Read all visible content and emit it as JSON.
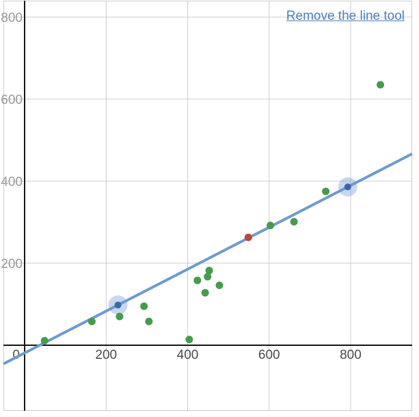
{
  "toolbar": {
    "remove_line_label": "Remove the line tool"
  },
  "chart_data": {
    "type": "scatter",
    "title": "",
    "xlabel": "",
    "ylabel": "",
    "x_axis": {
      "min": -52,
      "max": 951,
      "grid_step": 200,
      "ticks": [
        200,
        400,
        600,
        800
      ],
      "origin_label": "0"
    },
    "y_axis": {
      "min": -160,
      "max": 840,
      "grid_step": 200,
      "ticks": [
        200,
        400,
        600,
        800
      ]
    },
    "grid": true,
    "series": [
      {
        "name": "data-points",
        "color": "#469b4c",
        "radius": 5.5,
        "points": [
          [
            49,
            11
          ],
          [
            165,
            58
          ],
          [
            233,
            70
          ],
          [
            293,
            95
          ],
          [
            305,
            58
          ],
          [
            404,
            14
          ],
          [
            424,
            158
          ],
          [
            443,
            128
          ],
          [
            449,
            167
          ],
          [
            453,
            182
          ],
          [
            478,
            146
          ],
          [
            603,
            292
          ],
          [
            661,
            301
          ],
          [
            739,
            375
          ],
          [
            873,
            635
          ]
        ]
      },
      {
        "name": "selected-point",
        "color": "#c0453e",
        "radius": 5.5,
        "points": [
          [
            549,
            263
          ]
        ]
      }
    ],
    "line_tool": {
      "handles": [
        [
          229,
          98
        ],
        [
          793,
          386
        ]
      ],
      "line_color": "#6e9bcf",
      "line_width": 4,
      "handle_color": "#3a66aa",
      "handle_radius": 5,
      "halo_color": "rgba(110, 150, 210, 0.38)",
      "halo_radius": 14
    }
  },
  "colors": {
    "grid": "#cccccc",
    "border": "#cccccc",
    "axis": "#151515",
    "x_tick_label": "#4a4a4a",
    "y_tick_label": "#9a9a9a",
    "link": "#4a82b8"
  }
}
